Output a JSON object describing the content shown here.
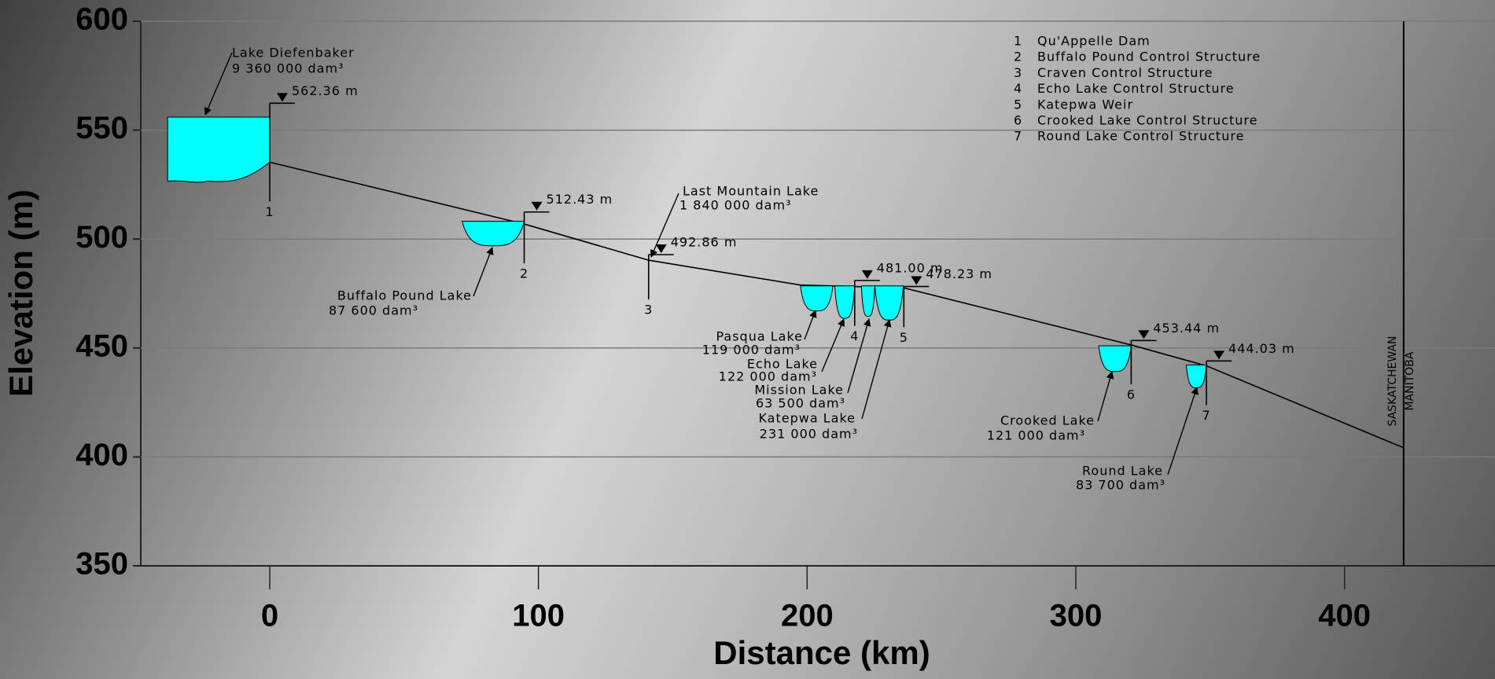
{
  "chart_data": {
    "type": "profile",
    "x_label": "Distance (km)",
    "y_label": "Elevation (m)",
    "xlim": [
      -48,
      456
    ],
    "ylim": [
      350,
      600
    ],
    "xticks": [
      0,
      100,
      200,
      300,
      400
    ],
    "yticks": [
      350,
      400,
      450,
      500,
      550,
      600
    ],
    "grid": true,
    "lake_color": "#00ffff",
    "profile": {
      "x": [
        0,
        94.7,
        141,
        197.5,
        236,
        320.6,
        348.6,
        422
      ],
      "values": [
        535.3,
        506.9,
        490.3,
        478.9,
        477.6,
        451.4,
        441.8,
        404.2
      ]
    },
    "structures": [
      {
        "number": "1",
        "name": "Qu'Appelle Dam",
        "distance": 0,
        "level": 562.36,
        "level_label": "562.36 m"
      },
      {
        "number": "2",
        "name": "Buffalo Pound Control Structure",
        "distance": 94.7,
        "level": 512.43,
        "level_label": "512.43 m"
      },
      {
        "number": "3",
        "name": "Craven Control Structure",
        "distance": 141,
        "level": 492.86,
        "level_label": "492.86 m"
      },
      {
        "number": "4",
        "name": "Echo Lake Control Structure",
        "distance": 217.7,
        "level": 481.0,
        "level_label": "481.00 m"
      },
      {
        "number": "5",
        "name": "Katepwa Weir",
        "distance": 236,
        "level": 478.23,
        "level_label": "478.23 m"
      },
      {
        "number": "6",
        "name": "Crooked Lake Control Structure",
        "distance": 320.6,
        "level": 453.44,
        "level_label": "453.44 m"
      },
      {
        "number": "7",
        "name": "Round Lake Control Structure",
        "distance": 348.6,
        "level": 444.03,
        "level_label": "444.03 m"
      }
    ],
    "lakes": [
      {
        "name": "Lake Diefenbaker",
        "volume": "9 360 000 dam³",
        "start": -38,
        "end": 0,
        "surface": 556,
        "bottom": 526.6
      },
      {
        "name": "Buffalo Pound Lake",
        "volume": "87 600 dam³",
        "start": 71.6,
        "end": 94.7,
        "surface": 508.2,
        "bottom": 496.9
      },
      {
        "name": "Last Mountain Lake",
        "volume": "1 840 000 dam³"
      },
      {
        "name": "Pasqua Lake",
        "volume": "119 000 dam³",
        "start": 197.5,
        "end": 209.6,
        "surface": 478.5,
        "bottom": 467
      },
      {
        "name": "Echo Lake",
        "volume": "122 000 dam³",
        "start": 210.3,
        "end": 217.7,
        "surface": 478.5,
        "bottom": 463.6
      },
      {
        "name": "Mission Lake",
        "volume": "63 500 dam³",
        "start": 220.2,
        "end": 225.2,
        "surface": 478.5,
        "bottom": 464.5
      },
      {
        "name": "Katepwa Lake",
        "volume": "231 000 dam³",
        "start": 225.2,
        "end": 235.8,
        "surface": 478.5,
        "bottom": 462.8
      },
      {
        "name": "Crooked Lake",
        "volume": "121 000 dam³",
        "start": 308.5,
        "end": 320.6,
        "surface": 451,
        "bottom": 439.2
      },
      {
        "name": "Round Lake",
        "volume": "83 700 dam³",
        "start": 341.1,
        "end": 348.6,
        "surface": 442.2,
        "bottom": 431.7
      }
    ],
    "border": {
      "distance": 422,
      "labels": [
        "SASKATCHEWAN",
        "MANITOBA"
      ]
    }
  }
}
